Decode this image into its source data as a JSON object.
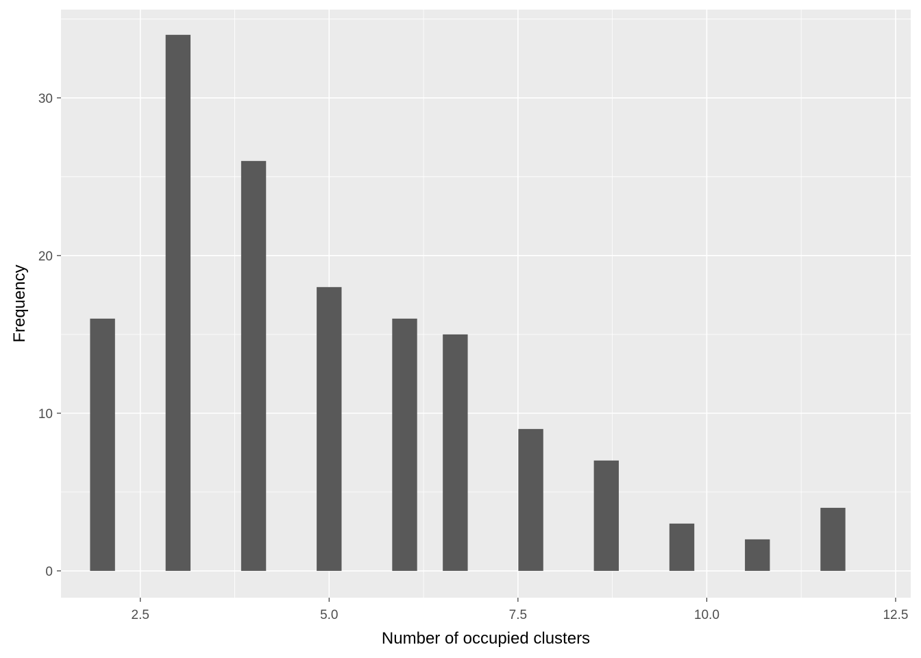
{
  "chart_data": {
    "type": "bar",
    "title": "",
    "xlabel": "Number of occupied clusters",
    "ylabel": "Frequency",
    "x": [
      2,
      3,
      4,
      5,
      6,
      6.67,
      7.67,
      8.67,
      9.67,
      10.67,
      11.67
    ],
    "values": [
      16,
      34,
      26,
      18,
      16,
      15,
      9,
      7,
      3,
      2,
      4
    ],
    "bar_width": 0.33,
    "xlim": [
      1.45,
      12.7
    ],
    "ylim": [
      -1.7,
      35.6
    ],
    "x_ticks": [
      2.5,
      5.0,
      7.5,
      10.0,
      12.5
    ],
    "x_tick_labels": [
      "2.5",
      "5.0",
      "7.5",
      "10.0",
      "12.5"
    ],
    "y_ticks": [
      0,
      10,
      20,
      30
    ],
    "y_tick_labels": [
      "0",
      "10",
      "20",
      "30"
    ],
    "grid": true,
    "legend": "none",
    "colors": {
      "bar": "#595959",
      "panel": "#EBEBEB",
      "grid": "#FFFFFF"
    }
  }
}
